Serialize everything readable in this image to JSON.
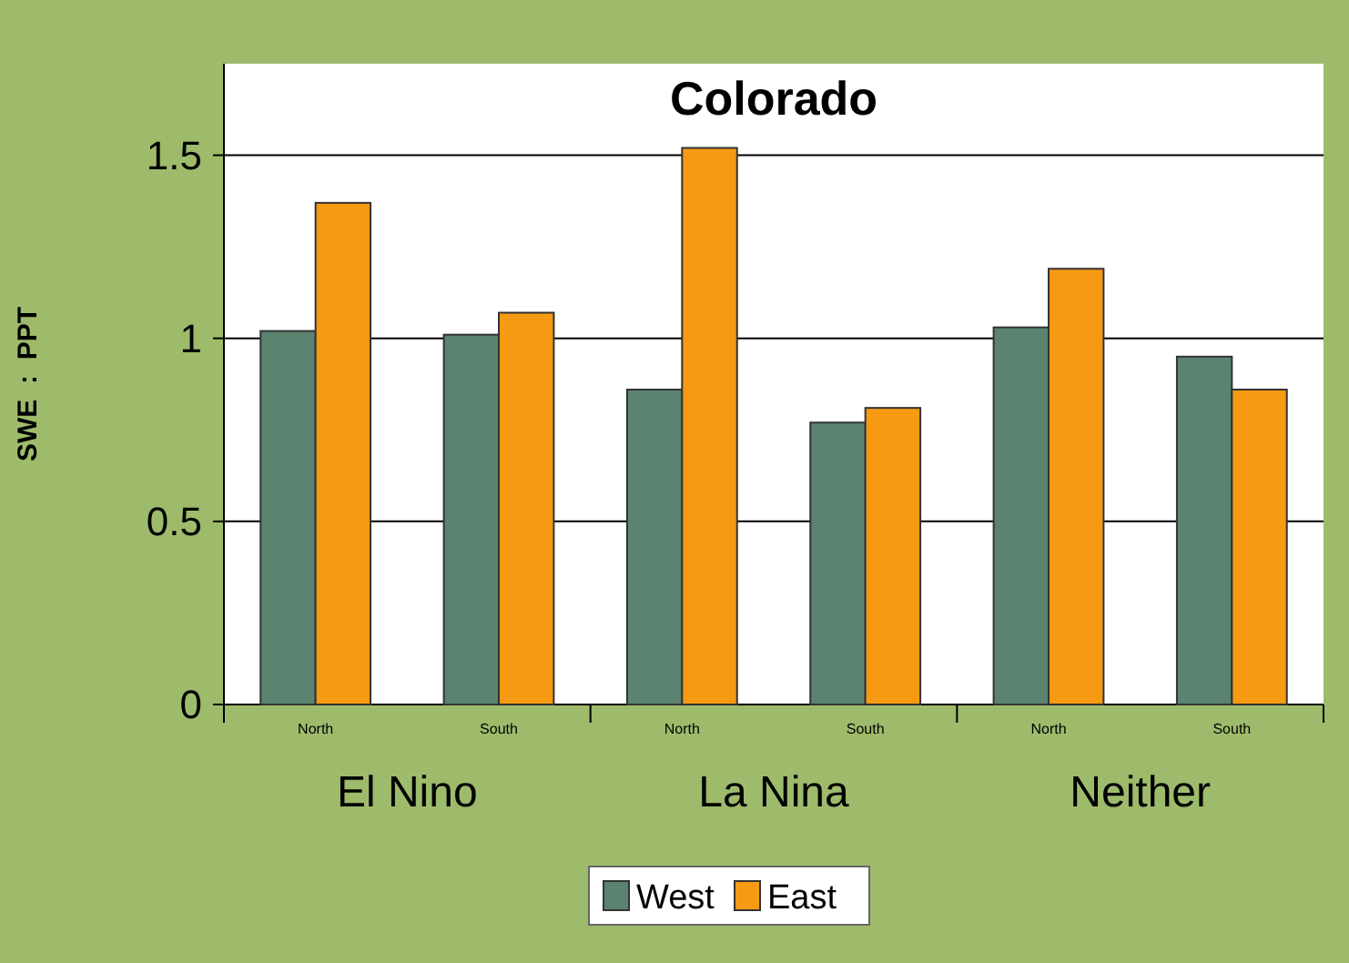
{
  "chart_data": {
    "type": "bar",
    "title": "Colorado",
    "ylabel": "SWE  :  PPT",
    "categories": [
      "North",
      "South",
      "North",
      "South",
      "North",
      "South"
    ],
    "annotations": [
      "El Nino",
      "La Nina",
      "Neither"
    ],
    "series": [
      {
        "name": "West",
        "color": "#5a8470",
        "values": [
          1.02,
          1.01,
          0.86,
          0.77,
          1.03,
          0.95
        ]
      },
      {
        "name": "East",
        "color": "#f59a12",
        "values": [
          1.37,
          1.07,
          1.52,
          0.81,
          1.19,
          0.86
        ]
      }
    ],
    "ylim": [
      0,
      1.75
    ],
    "yticks": [
      0,
      0.5,
      1,
      1.5
    ],
    "grid": "y",
    "legend": "bottom"
  }
}
